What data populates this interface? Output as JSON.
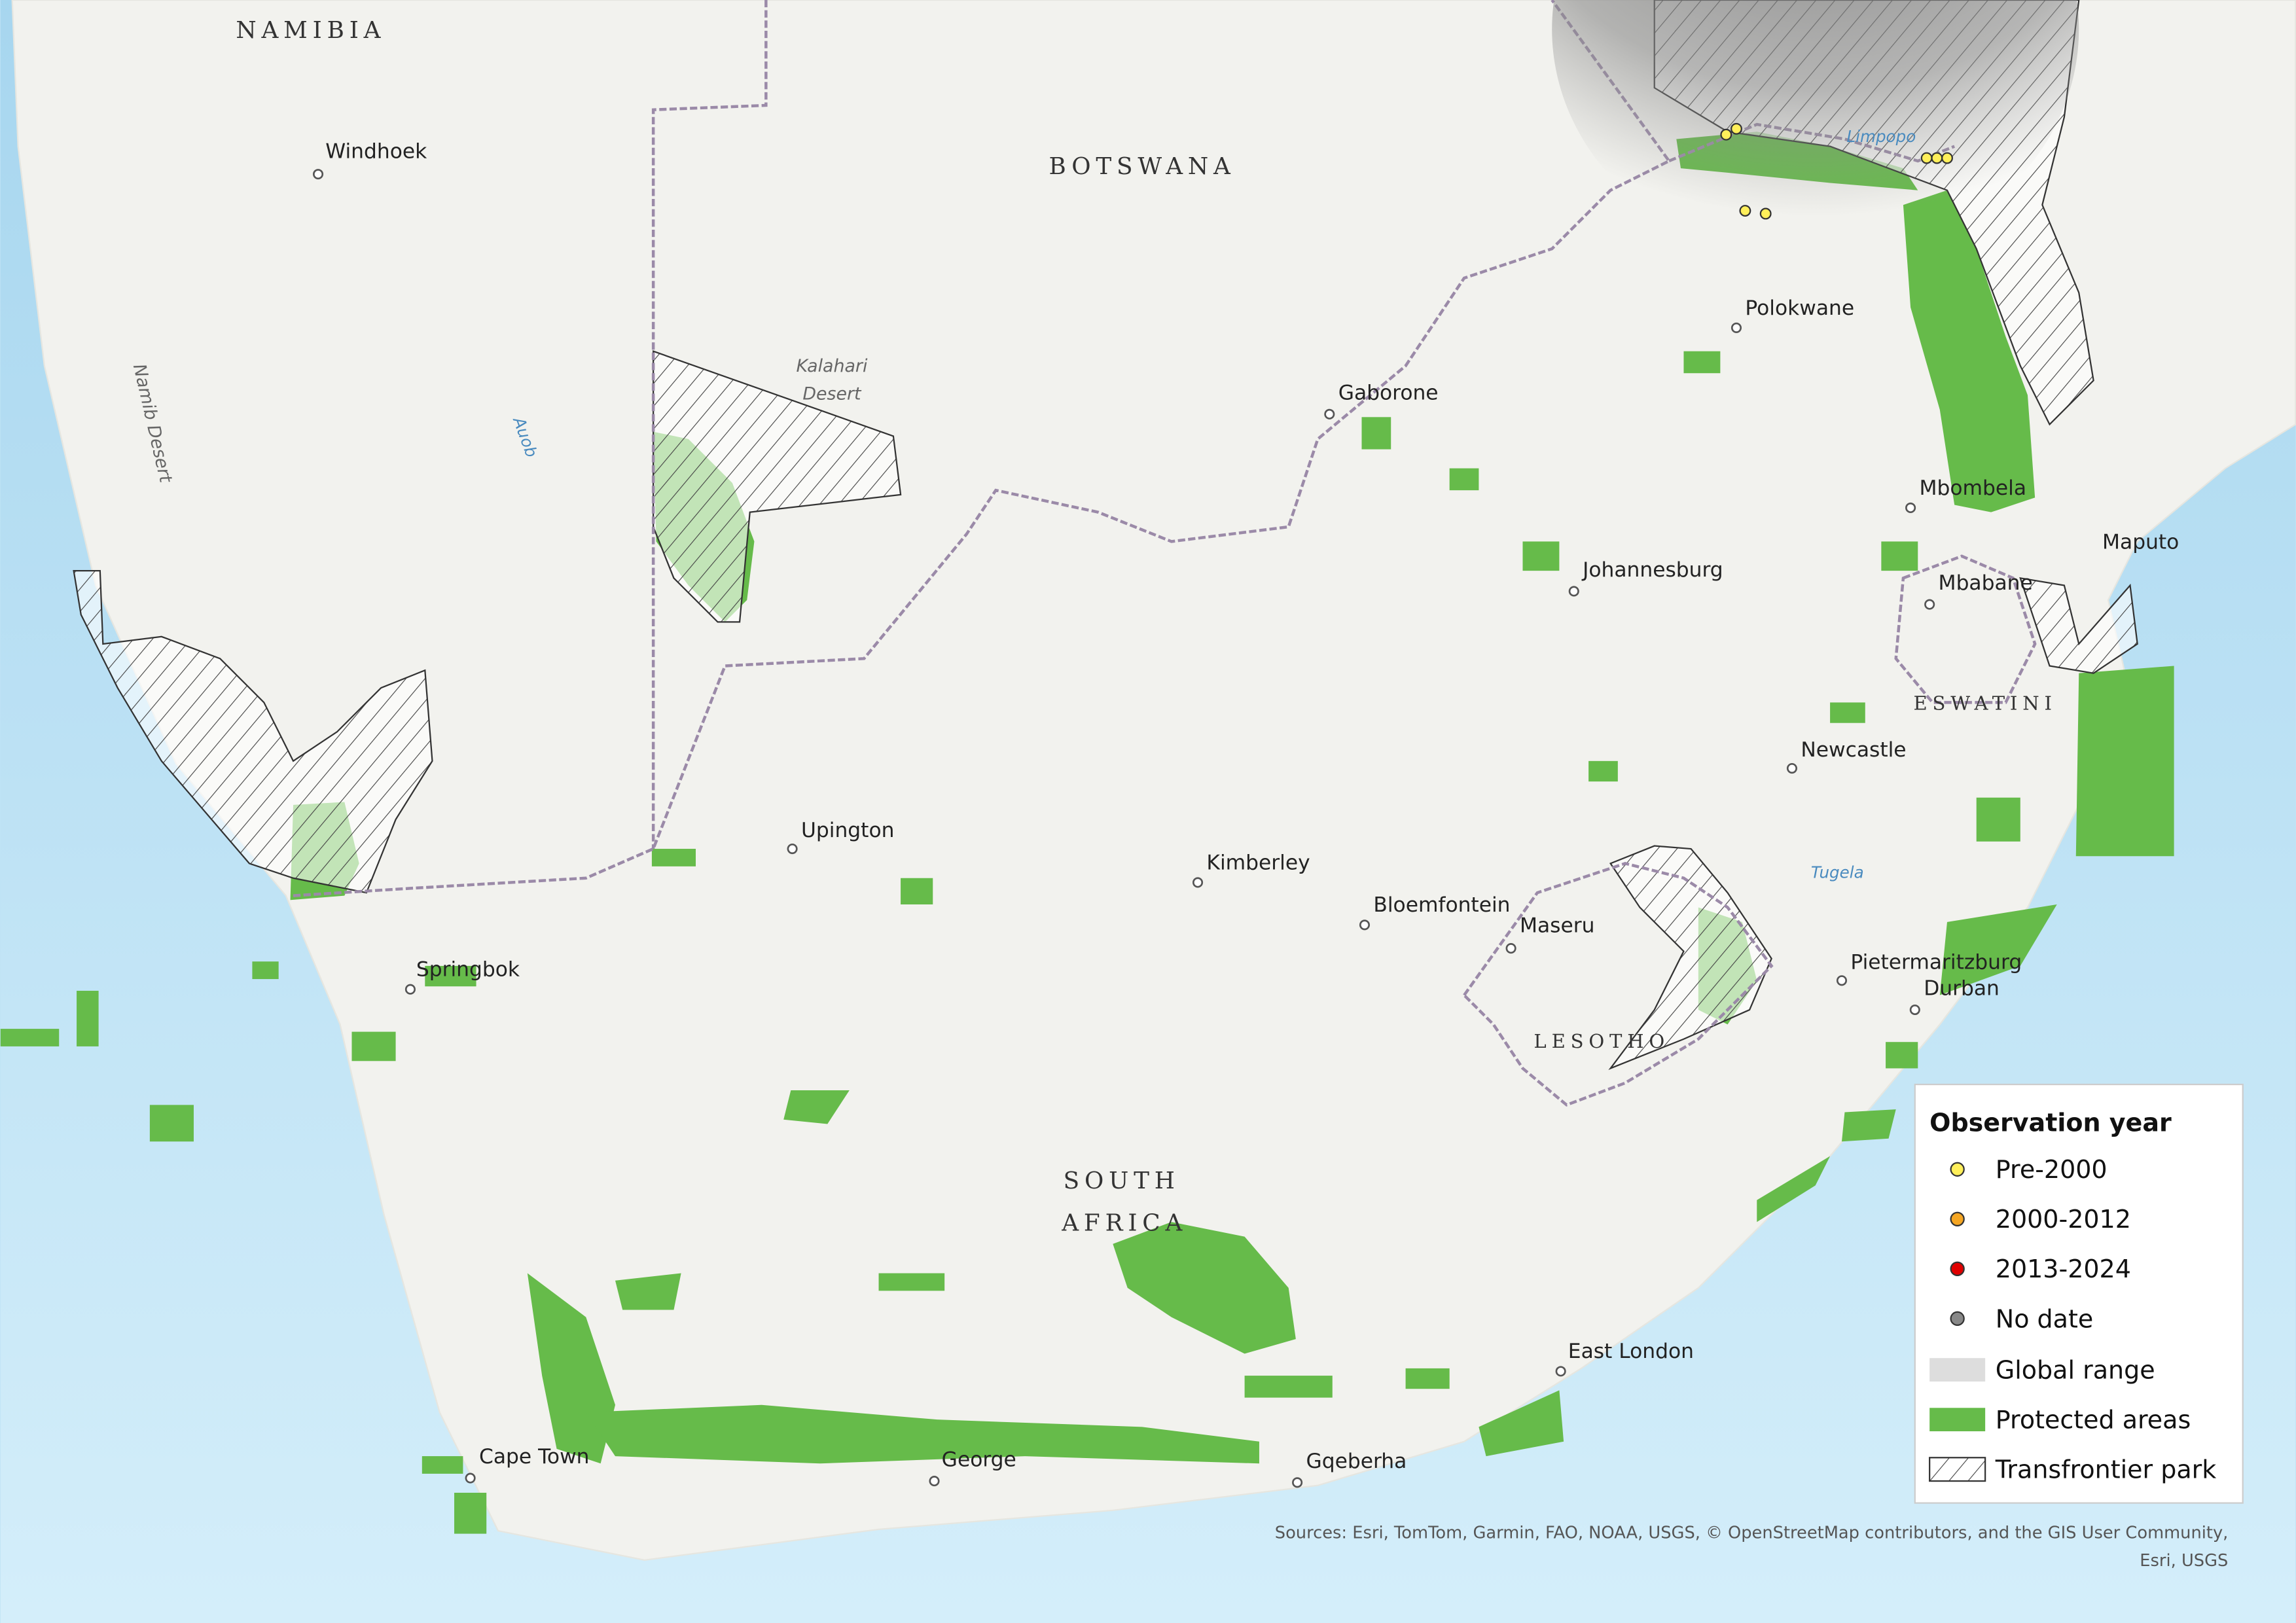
{
  "map": {
    "countries": [
      "NAMIBIA",
      "BOTSWANA",
      [
        "SOUTH",
        "AFRICA"
      ],
      "LESOTHO",
      "ESWATINI"
    ],
    "cities": [
      "Windhoek",
      "Gaborone",
      "Polokwane",
      "Mbombela",
      "Maputo",
      "Johannesburg",
      "Mbabane",
      "Newcastle",
      "Upington",
      "Kimberley",
      "Bloemfontein",
      "Maseru",
      "Springbok",
      "Pietermaritzburg",
      "Durban",
      "East London",
      "Cape Town",
      "George",
      "Gqeberha"
    ],
    "features": [
      "Namib Desert",
      [
        "Kalahari",
        "Desert"
      ],
      "Auob",
      "Limpopo",
      "Tugela"
    ]
  },
  "legend": {
    "title": "Observation year",
    "items": [
      "Pre-2000",
      "2000-2012",
      "2013-2024",
      "No date",
      "Global range",
      "Protected areas",
      "Transfrontier park"
    ]
  },
  "sources": [
    "Sources: Esri, TomTom, Garmin, FAO, NOAA, USGS, © OpenStreetMap contributors, and the GIS User Community,",
    "Esri, USGS"
  ]
}
